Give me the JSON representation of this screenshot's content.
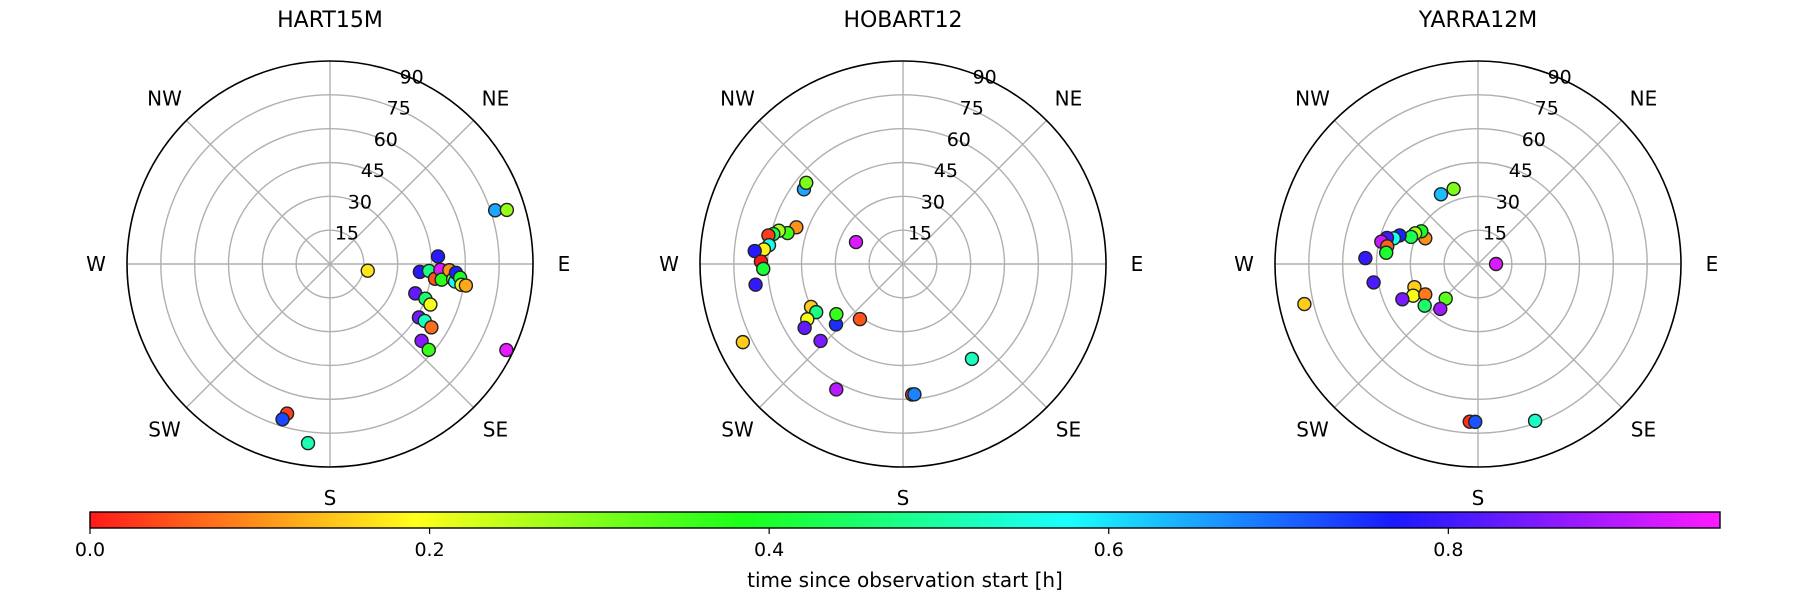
{
  "chart_data": [
    {
      "type": "scatter",
      "projection": "polar",
      "title": "HART15M",
      "direction_labels": [
        "NE",
        "E",
        "SE",
        "S",
        "SW",
        "W",
        "NW"
      ],
      "radial_ticks": [
        15,
        30,
        45,
        60,
        75,
        90
      ],
      "radial_range": [
        0,
        90
      ],
      "grid": true,
      "azimuth_zero": "N",
      "azimuth_direction": "clockwise",
      "points": [
        {
          "az": 100,
          "zenith": 17,
          "t": 0.17
        },
        {
          "az": 72,
          "zenith": 77,
          "t": 0.65
        },
        {
          "az": 73,
          "zenith": 82,
          "t": 0.28
        },
        {
          "az": 95,
          "zenith": 40,
          "t": 0.78
        },
        {
          "az": 94,
          "zenith": 44,
          "t": 0.47
        },
        {
          "az": 98,
          "zenith": 47,
          "t": 0.05
        },
        {
          "az": 93,
          "zenith": 49,
          "t": 0.93
        },
        {
          "az": 98,
          "zenith": 50,
          "t": 0.37
        },
        {
          "az": 86,
          "zenith": 48,
          "t": 0.78
        },
        {
          "az": 93,
          "zenith": 53,
          "t": 0.1
        },
        {
          "az": 97,
          "zenith": 55,
          "t": 0.29
        },
        {
          "az": 98,
          "zenith": 56,
          "t": 0.58
        },
        {
          "az": 94,
          "zenith": 56,
          "t": 0.76
        },
        {
          "az": 96,
          "zenith": 58,
          "t": 0.39
        },
        {
          "az": 99,
          "zenith": 59,
          "t": 0.22
        },
        {
          "az": 99,
          "zenith": 61,
          "t": 0.12
        },
        {
          "az": 109,
          "zenith": 40,
          "t": 0.83
        },
        {
          "az": 110,
          "zenith": 45,
          "t": 0.45
        },
        {
          "az": 112,
          "zenith": 48,
          "t": 0.2
        },
        {
          "az": 121,
          "zenith": 46,
          "t": 0.84
        },
        {
          "az": 121,
          "zenith": 49,
          "t": 0.52
        },
        {
          "az": 122,
          "zenith": 53,
          "t": 0.07
        },
        {
          "az": 130,
          "zenith": 53,
          "t": 0.86
        },
        {
          "az": 131,
          "zenith": 58,
          "t": 0.36
        },
        {
          "az": 116,
          "zenith": 87,
          "t": 0.94
        },
        {
          "az": 196,
          "zenith": 69,
          "t": 0.03
        },
        {
          "az": 197,
          "zenith": 72,
          "t": 0.73
        },
        {
          "az": 187,
          "zenith": 80,
          "t": 0.51
        }
      ]
    },
    {
      "type": "scatter",
      "projection": "polar",
      "title": "HOBART12",
      "direction_labels": [
        "NW",
        "NE",
        "E",
        "SE",
        "S",
        "SW",
        "W"
      ],
      "radial_ticks": [
        15,
        30,
        45,
        60,
        75,
        90
      ],
      "radial_range": [
        0,
        90
      ],
      "grid": true,
      "azimuth_zero": "N",
      "azimuth_direction": "clockwise",
      "points": [
        {
          "az": 295,
          "zenith": 23,
          "t": 0.93
        },
        {
          "az": 307,
          "zenith": 55,
          "t": 0.65
        },
        {
          "az": 310,
          "zenith": 56,
          "t": 0.3
        },
        {
          "az": 289,
          "zenith": 50,
          "t": 0.1
        },
        {
          "az": 285,
          "zenith": 53,
          "t": 0.35
        },
        {
          "az": 285,
          "zenith": 57,
          "t": 0.27
        },
        {
          "az": 283,
          "zenith": 59,
          "t": 0.43
        },
        {
          "az": 282,
          "zenith": 61,
          "t": 0.03
        },
        {
          "az": 278,
          "zenith": 60,
          "t": 0.55
        },
        {
          "az": 276,
          "zenith": 62,
          "t": 0.18
        },
        {
          "az": 275,
          "zenith": 66,
          "t": 0.78
        },
        {
          "az": 271,
          "zenith": 63,
          "t": 0.0
        },
        {
          "az": 268,
          "zenith": 62,
          "t": 0.41
        },
        {
          "az": 262,
          "zenith": 66,
          "t": 0.79
        },
        {
          "az": 245,
          "zenith": 45,
          "t": 0.15
        },
        {
          "az": 241,
          "zenith": 44,
          "t": 0.47
        },
        {
          "az": 240,
          "zenith": 49,
          "t": 0.2
        },
        {
          "az": 237,
          "zenith": 52,
          "t": 0.83
        },
        {
          "az": 228,
          "zenith": 40,
          "t": 0.75
        },
        {
          "az": 233,
          "zenith": 37,
          "t": 0.36
        },
        {
          "az": 227,
          "zenith": 50,
          "t": 0.85
        },
        {
          "az": 244,
          "zenith": 79,
          "t": 0.15
        },
        {
          "az": 208,
          "zenith": 63,
          "t": 0.9
        },
        {
          "az": 218,
          "zenith": 31,
          "t": 0.05
        },
        {
          "az": 176,
          "zenith": 58,
          "t": 0.03
        },
        {
          "az": 175,
          "zenith": 58,
          "t": 0.68
        },
        {
          "az": 144,
          "zenith": 52,
          "t": 0.52
        }
      ]
    },
    {
      "type": "scatter",
      "projection": "polar",
      "title": "YARRA12M",
      "direction_labels": [
        "NW",
        "NE",
        "E",
        "SE",
        "S",
        "SW",
        "W"
      ],
      "radial_ticks": [
        15,
        30,
        45,
        60,
        75,
        90
      ],
      "radial_range": [
        0,
        90
      ],
      "grid": true,
      "azimuth_zero": "N",
      "azimuth_direction": "clockwise",
      "points": [
        {
          "az": 90,
          "zenith": 8,
          "t": 0.93
        },
        {
          "az": 332,
          "zenith": 35,
          "t": 0.63
        },
        {
          "az": 342,
          "zenith": 35,
          "t": 0.3
        },
        {
          "az": 296,
          "zenith": 26,
          "t": 0.1
        },
        {
          "az": 300,
          "zenith": 29,
          "t": 0.39
        },
        {
          "az": 296,
          "zenith": 31,
          "t": 0.27
        },
        {
          "az": 292,
          "zenith": 32,
          "t": 0.43
        },
        {
          "az": 290,
          "zenith": 37,
          "t": 0.76
        },
        {
          "az": 287,
          "zenith": 39,
          "t": 0.57
        },
        {
          "az": 286,
          "zenith": 42,
          "t": 0.8
        },
        {
          "az": 283,
          "zenith": 44,
          "t": 0.91
        },
        {
          "az": 281,
          "zenith": 41,
          "t": 0.06
        },
        {
          "az": 277,
          "zenith": 41,
          "t": 0.4
        },
        {
          "az": 273,
          "zenith": 50,
          "t": 0.79
        },
        {
          "az": 250,
          "zenith": 30,
          "t": 0.15
        },
        {
          "az": 244,
          "zenith": 32,
          "t": 0.2
        },
        {
          "az": 245,
          "zenith": 37,
          "t": 0.85
        },
        {
          "az": 240,
          "zenith": 27,
          "t": 0.08
        },
        {
          "az": 232,
          "zenith": 30,
          "t": 0.45
        },
        {
          "az": 223,
          "zenith": 21,
          "t": 0.33
        },
        {
          "az": 220,
          "zenith": 26,
          "t": 0.88
        },
        {
          "az": 260,
          "zenith": 47,
          "t": 0.81
        },
        {
          "az": 257,
          "zenith": 79,
          "t": 0.15
        },
        {
          "az": 183,
          "zenith": 70,
          "t": 0.02
        },
        {
          "az": 181,
          "zenith": 70,
          "t": 0.72
        },
        {
          "az": 160,
          "zenith": 74,
          "t": 0.53
        }
      ]
    }
  ],
  "colorbar": {
    "label": "time since observation start [h]",
    "range": [
      0,
      0.96
    ],
    "ticks": [
      "0.0",
      "0.2",
      "0.4",
      "0.6",
      "0.8"
    ],
    "tick_values": [
      0.0,
      0.2,
      0.4,
      0.6,
      0.8
    ],
    "colormap": "gist_rainbow"
  }
}
